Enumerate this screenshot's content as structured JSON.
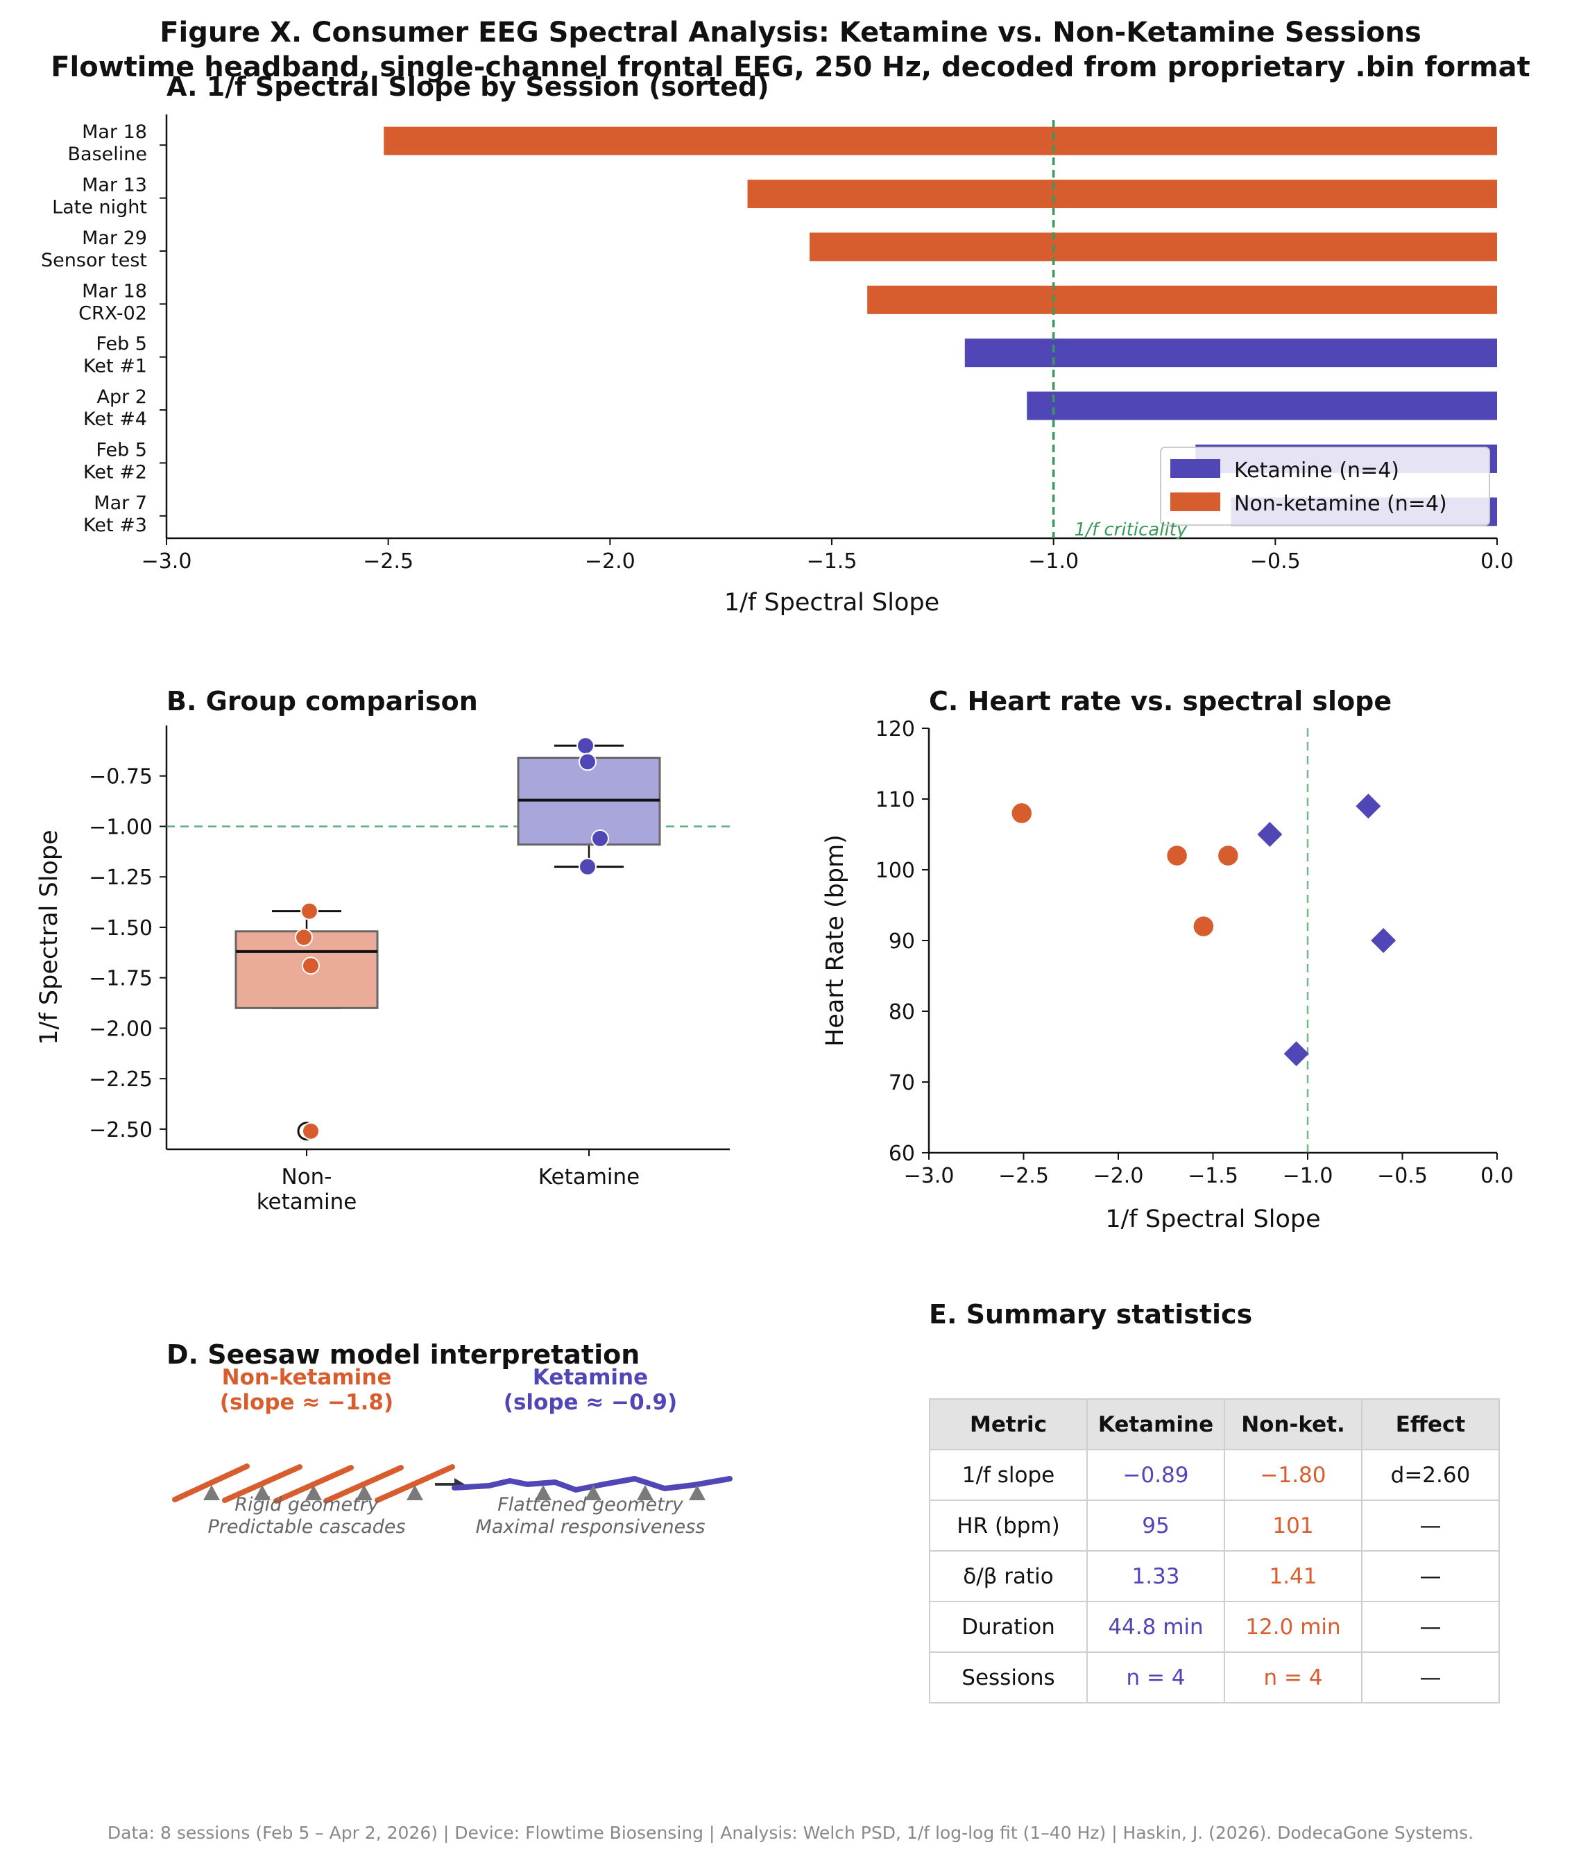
{
  "figure": {
    "title": "Figure X. Consumer EEG Spectral Analysis: Ketamine vs. Non-Ketamine Sessions",
    "subtitle": "Flowtime headband, single-channel frontal EEG, 250 Hz, decoded from proprietary .bin format",
    "footer": "Data: 8 sessions (Feb 5 – Apr 2, 2026) | Device: Flowtime Biosensing | Analysis: Welch PSD, 1/f log-log fit (1–40 Hz) | Haskin, J. (2026). DodecaGone Systems."
  },
  "colors": {
    "ketamine": "#5046b5",
    "nonketamine": "#d75d2f",
    "ketamine_box": "#a9a6dc",
    "nonketamine_box": "#eaac98",
    "criticality": "#3a9a5c",
    "pivot": "#7a7a7a"
  },
  "chart_data": [
    {
      "id": "A",
      "type": "bar",
      "orientation": "horizontal",
      "title": "A. 1/f Spectral Slope by Session (sorted)",
      "xlabel": "1/f Spectral Slope",
      "xlim": [
        -3.0,
        0.0
      ],
      "xticks": [
        "−3.0",
        "−2.5",
        "−2.0",
        "−1.5",
        "−1.0",
        "−0.5",
        "0.0"
      ],
      "categories": [
        [
          "Mar 18",
          "Baseline"
        ],
        [
          "Mar 13",
          "Late night"
        ],
        [
          "Mar 29",
          "Sensor test"
        ],
        [
          "Mar 18",
          "CRX-02"
        ],
        [
          "Feb 5",
          "Ket #1"
        ],
        [
          "Apr 2",
          "Ket #4"
        ],
        [
          "Feb 5",
          "Ket #2"
        ],
        [
          "Mar 7",
          "Ket #3"
        ]
      ],
      "values": [
        -2.51,
        -1.69,
        -1.55,
        -1.42,
        -1.2,
        -1.06,
        -0.68,
        -0.6
      ],
      "groups": [
        "non",
        "non",
        "non",
        "non",
        "ket",
        "ket",
        "ket",
        "ket"
      ],
      "reference_line": {
        "x": -1.0,
        "label": "1/f criticality"
      },
      "legend": [
        "Ketamine (n=4)",
        "Non-ketamine (n=4)"
      ],
      "legend_position": "lower-right"
    },
    {
      "id": "B",
      "type": "box",
      "title": "B. Group comparison",
      "ylabel": "1/f Spectral Slope",
      "ylim": [
        -2.6,
        -0.5
      ],
      "yticks": [
        "−0.75",
        "−1.00",
        "−1.25",
        "−1.50",
        "−1.75",
        "−2.00",
        "−2.25",
        "−2.50"
      ],
      "categories": [
        [
          "Non-",
          "ketamine"
        ],
        [
          "Ketamine"
        ]
      ],
      "boxes": [
        {
          "group": "non",
          "q1": -1.9,
          "median": -1.62,
          "q3": -1.52,
          "whisker_low": -1.9,
          "whisker_high": -1.42,
          "outliers": [
            -2.51
          ]
        },
        {
          "group": "ket",
          "q1": -1.09,
          "median": -0.87,
          "q3": -0.66,
          "whisker_low": -1.2,
          "whisker_high": -0.6,
          "outliers": []
        }
      ],
      "points": [
        {
          "group": "non",
          "values": [
            -1.42,
            -1.55,
            -1.69,
            -2.51
          ]
        },
        {
          "group": "ket",
          "values": [
            -0.6,
            -0.68,
            -1.06,
            -1.2
          ]
        }
      ],
      "reference_line": {
        "y": -1.0
      }
    },
    {
      "id": "C",
      "type": "scatter",
      "title": "C. Heart rate vs. spectral slope",
      "xlabel": "1/f Spectral Slope",
      "ylabel": "Heart Rate (bpm)",
      "xlim": [
        -3.0,
        0.0
      ],
      "ylim": [
        60,
        120
      ],
      "xticks": [
        "−3.0",
        "−2.5",
        "−2.0",
        "−1.5",
        "−1.0",
        "−0.5",
        "0.0"
      ],
      "yticks": [
        "60",
        "70",
        "80",
        "90",
        "100",
        "110",
        "120"
      ],
      "series": [
        {
          "name": "Non-ketamine",
          "marker": "circle",
          "x": [
            -2.51,
            -1.69,
            -1.42,
            -1.55
          ],
          "y": [
            108,
            102,
            102,
            92
          ]
        },
        {
          "name": "Ketamine",
          "marker": "diamond",
          "x": [
            -1.2,
            -0.68,
            -0.6,
            -1.06
          ],
          "y": [
            105,
            109,
            90,
            74
          ]
        }
      ],
      "reference_line": {
        "x": -1.0
      }
    }
  ],
  "seesaw": {
    "title": "D. Seesaw model interpretation",
    "left_label": "Non-ketamine",
    "left_slope": "(slope ≈ −1.8)",
    "right_label": "Ketamine",
    "right_slope": "(slope ≈ −0.9)",
    "left_caption_1": "Rigid geometry",
    "left_caption_2": "Predictable cascades",
    "right_caption_1": "Flattened geometry",
    "right_caption_2": "Maximal responsiveness"
  },
  "summary": {
    "title": "E. Summary statistics",
    "headers": [
      "Metric",
      "Ketamine",
      "Non-ket.",
      "Effect"
    ],
    "rows": [
      [
        "1/f slope",
        "−0.89",
        "−1.80",
        "d=2.60"
      ],
      [
        "HR (bpm)",
        "95",
        "101",
        "—"
      ],
      [
        "δ/β ratio",
        "1.33",
        "1.41",
        "—"
      ],
      [
        "Duration",
        "44.8 min",
        "12.0 min",
        "—"
      ],
      [
        "Sessions",
        "n = 4",
        "n = 4",
        "—"
      ]
    ]
  }
}
